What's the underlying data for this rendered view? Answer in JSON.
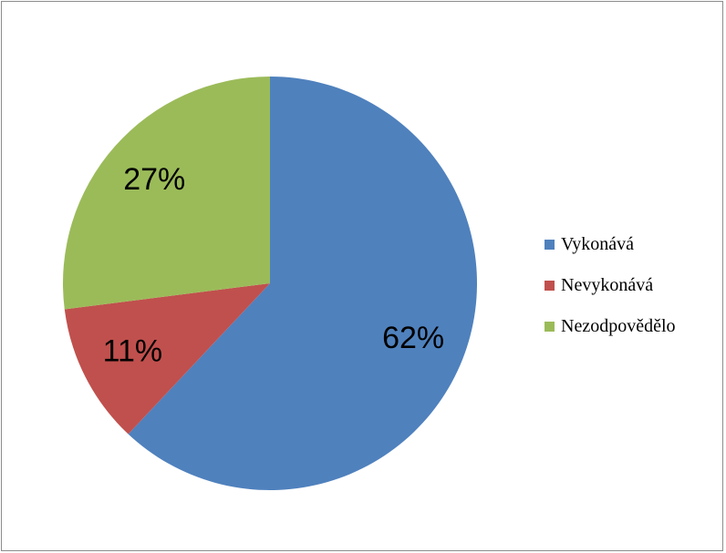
{
  "chart_data": {
    "type": "pie",
    "slices": [
      {
        "label": "Vykonává",
        "value": 62,
        "display": "62%",
        "color": "#4F81BD"
      },
      {
        "label": "Nevykonává",
        "value": 11,
        "display": "11%",
        "color": "#C0504D"
      },
      {
        "label": "Nezodpovědělo",
        "value": 27,
        "display": "27%",
        "color": "#9BBB59"
      }
    ],
    "start_angle_deg": 0,
    "direction": "clockwise",
    "legend_position": "right",
    "title": ""
  }
}
